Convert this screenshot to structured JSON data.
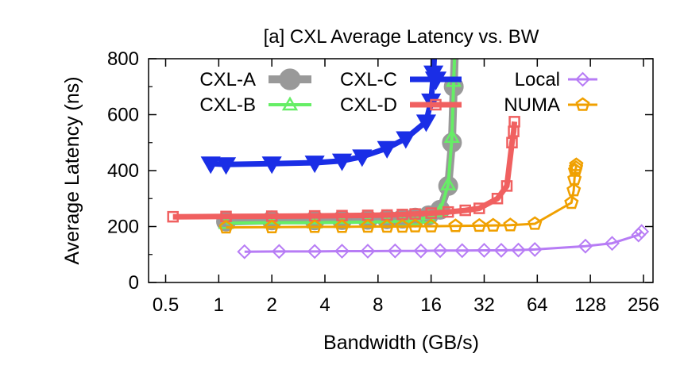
{
  "chart_data": {
    "type": "line",
    "title": "[a] CXL Average Latency vs. BW",
    "xlabel": "Bandwidth (GB/s)",
    "ylabel": "Average Latency (ns)",
    "x_scale": "log2",
    "xlim": [
      0.4,
      290
    ],
    "ylim": [
      0,
      800
    ],
    "x_ticks": [
      0.5,
      1,
      2,
      4,
      8,
      16,
      32,
      64,
      128,
      256
    ],
    "x_tick_labels": [
      "0.5",
      "1",
      "2",
      "4",
      "8",
      "16",
      "32",
      "64",
      "128",
      "256"
    ],
    "y_ticks": [
      0,
      200,
      400,
      600,
      800
    ],
    "y_tick_labels": [
      "0",
      "200",
      "400",
      "600",
      "800"
    ],
    "grid": false,
    "legend": "top, inside plot, 3 rows x 2 columns",
    "series": [
      {
        "name": "CXL-A",
        "color": "#ffffff",
        "marker": "none",
        "x": [],
        "y": []
      },
      {
        "name": "CXL-B",
        "color": "#ffffff",
        "marker": "none",
        "x": [],
        "y": []
      },
      {
        "name": "CXL-C",
        "color": "#999999",
        "marker": "circle",
        "x": [
          1.1,
          2.0,
          3.5,
          5.0,
          7.0,
          9.0,
          11.0,
          13.0,
          15.5,
          18.0,
          20.0,
          21.0,
          21.5,
          22.0
        ],
        "y": [
          218,
          222,
          222,
          223,
          224,
          226,
          228,
          232,
          240,
          260,
          345,
          500,
          700,
          900
        ]
      },
      {
        "name": "CXL-D",
        "color": "#66ee66",
        "marker": "triangle-up",
        "x": [
          1.1,
          2.0,
          3.5,
          5.0,
          7.0,
          9.0,
          11.0,
          13.0,
          15.5,
          18.0,
          20.0,
          21.0,
          21.5,
          22.0
        ],
        "y": [
          212,
          214,
          214,
          215,
          216,
          217,
          220,
          225,
          232,
          255,
          350,
          520,
          720,
          900
        ]
      },
      {
        "name": "NUMA",
        "color": "#f06060",
        "marker": "square",
        "x": [
          0.55,
          1.1,
          2.0,
          3.5,
          5.0,
          7.0,
          9.0,
          11.0,
          13.0,
          16.0,
          20.0,
          25.0,
          30.0,
          38.0,
          43.0,
          46.0,
          47.0,
          47.5
        ],
        "y": [
          235,
          236,
          237,
          238,
          239,
          240,
          241,
          243,
          245,
          248,
          252,
          258,
          265,
          300,
          345,
          500,
          540,
          575
        ]
      },
      {
        "name": "Local",
        "color": "#b77cf5",
        "marker": "diamond",
        "x": [
          1.4,
          2.2,
          3.5,
          5.0,
          7.0,
          10.0,
          14.0,
          18.0,
          24.0,
          32.0,
          40.0,
          50.0,
          62.0,
          120.0,
          170.0,
          240.0,
          250.0
        ],
        "y": [
          110,
          111,
          111,
          112,
          112,
          113,
          113,
          114,
          114,
          115,
          115,
          116,
          118,
          130,
          140,
          170,
          182
        ]
      },
      {
        "name": "CXL-C",
        "color": "#1a2ee6",
        "marker": "triangle-down",
        "x": [
          0.9,
          1.1,
          2.0,
          3.5,
          5.0,
          6.5,
          9.0,
          11.5,
          15.0,
          16.0,
          16.5,
          17.0
        ],
        "y": [
          425,
          422,
          425,
          428,
          435,
          450,
          480,
          515,
          575,
          650,
          750,
          900
        ]
      },
      {
        "name": "",
        "color": "#f0a000",
        "marker": "pentagon",
        "x": [
          1.1,
          2.0,
          3.5,
          5.0,
          7.0,
          9.0,
          11.0,
          13.0,
          16.0,
          22.0,
          30.0,
          36.0,
          45.0,
          62.0,
          100.0,
          103.0,
          104.0,
          105.0,
          106.0,
          106.5
        ],
        "y": [
          197,
          198,
          199,
          199,
          200,
          200,
          200,
          201,
          201,
          202,
          203,
          204,
          205,
          210,
          285,
          330,
          370,
          400,
          410,
          420
        ]
      }
    ],
    "legend_entries": [
      {
        "label": "CXL-A",
        "color": "#999999",
        "marker": "circle"
      },
      {
        "label": "CXL-C",
        "color": "#1a2ee6",
        "marker": "triangle-down"
      },
      {
        "label": "Local",
        "color": "#b77cf5",
        "marker": "diamond"
      },
      {
        "label": "CXL-B",
        "color": "#66ee66",
        "marker": "triangle-up"
      },
      {
        "label": "CXL-D",
        "color": "#f06060",
        "marker": "square"
      },
      {
        "label": "NUMA",
        "color": "#f0a000",
        "marker": "pentagon"
      }
    ]
  }
}
